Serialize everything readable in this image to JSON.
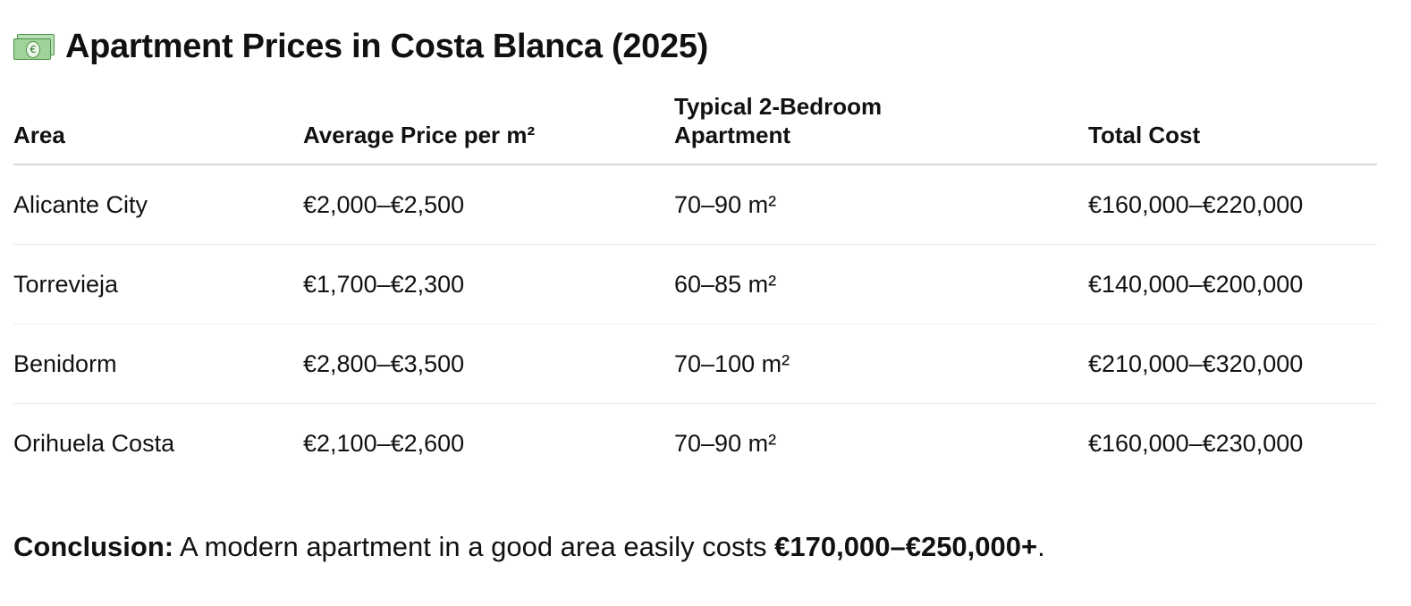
{
  "header": {
    "icon": "money-with-wings-euro-icon",
    "title": "Apartment Prices in Costa Blanca (2025)"
  },
  "table": {
    "columns": [
      "Area",
      "Average Price per m²",
      "Typical 2-Bedroom Apartment",
      "Total Cost"
    ],
    "rows": [
      [
        "Alicante City",
        "€2,000–€2,500",
        "70–90 m²",
        "€160,000–€220,000"
      ],
      [
        "Torrevieja",
        "€1,700–€2,300",
        "60–85 m²",
        "€140,000–€200,000"
      ],
      [
        "Benidorm",
        "€2,800–€3,500",
        "70–100 m²",
        "€210,000–€320,000"
      ],
      [
        "Orihuela Costa",
        "€2,100–€2,600",
        "70–90 m²",
        "€160,000–€230,000"
      ]
    ]
  },
  "conclusion": {
    "lead": "Conclusion:",
    "text": " A modern apartment in a good area easily costs ",
    "range": "€170,000–€250,000+",
    "end": "."
  }
}
